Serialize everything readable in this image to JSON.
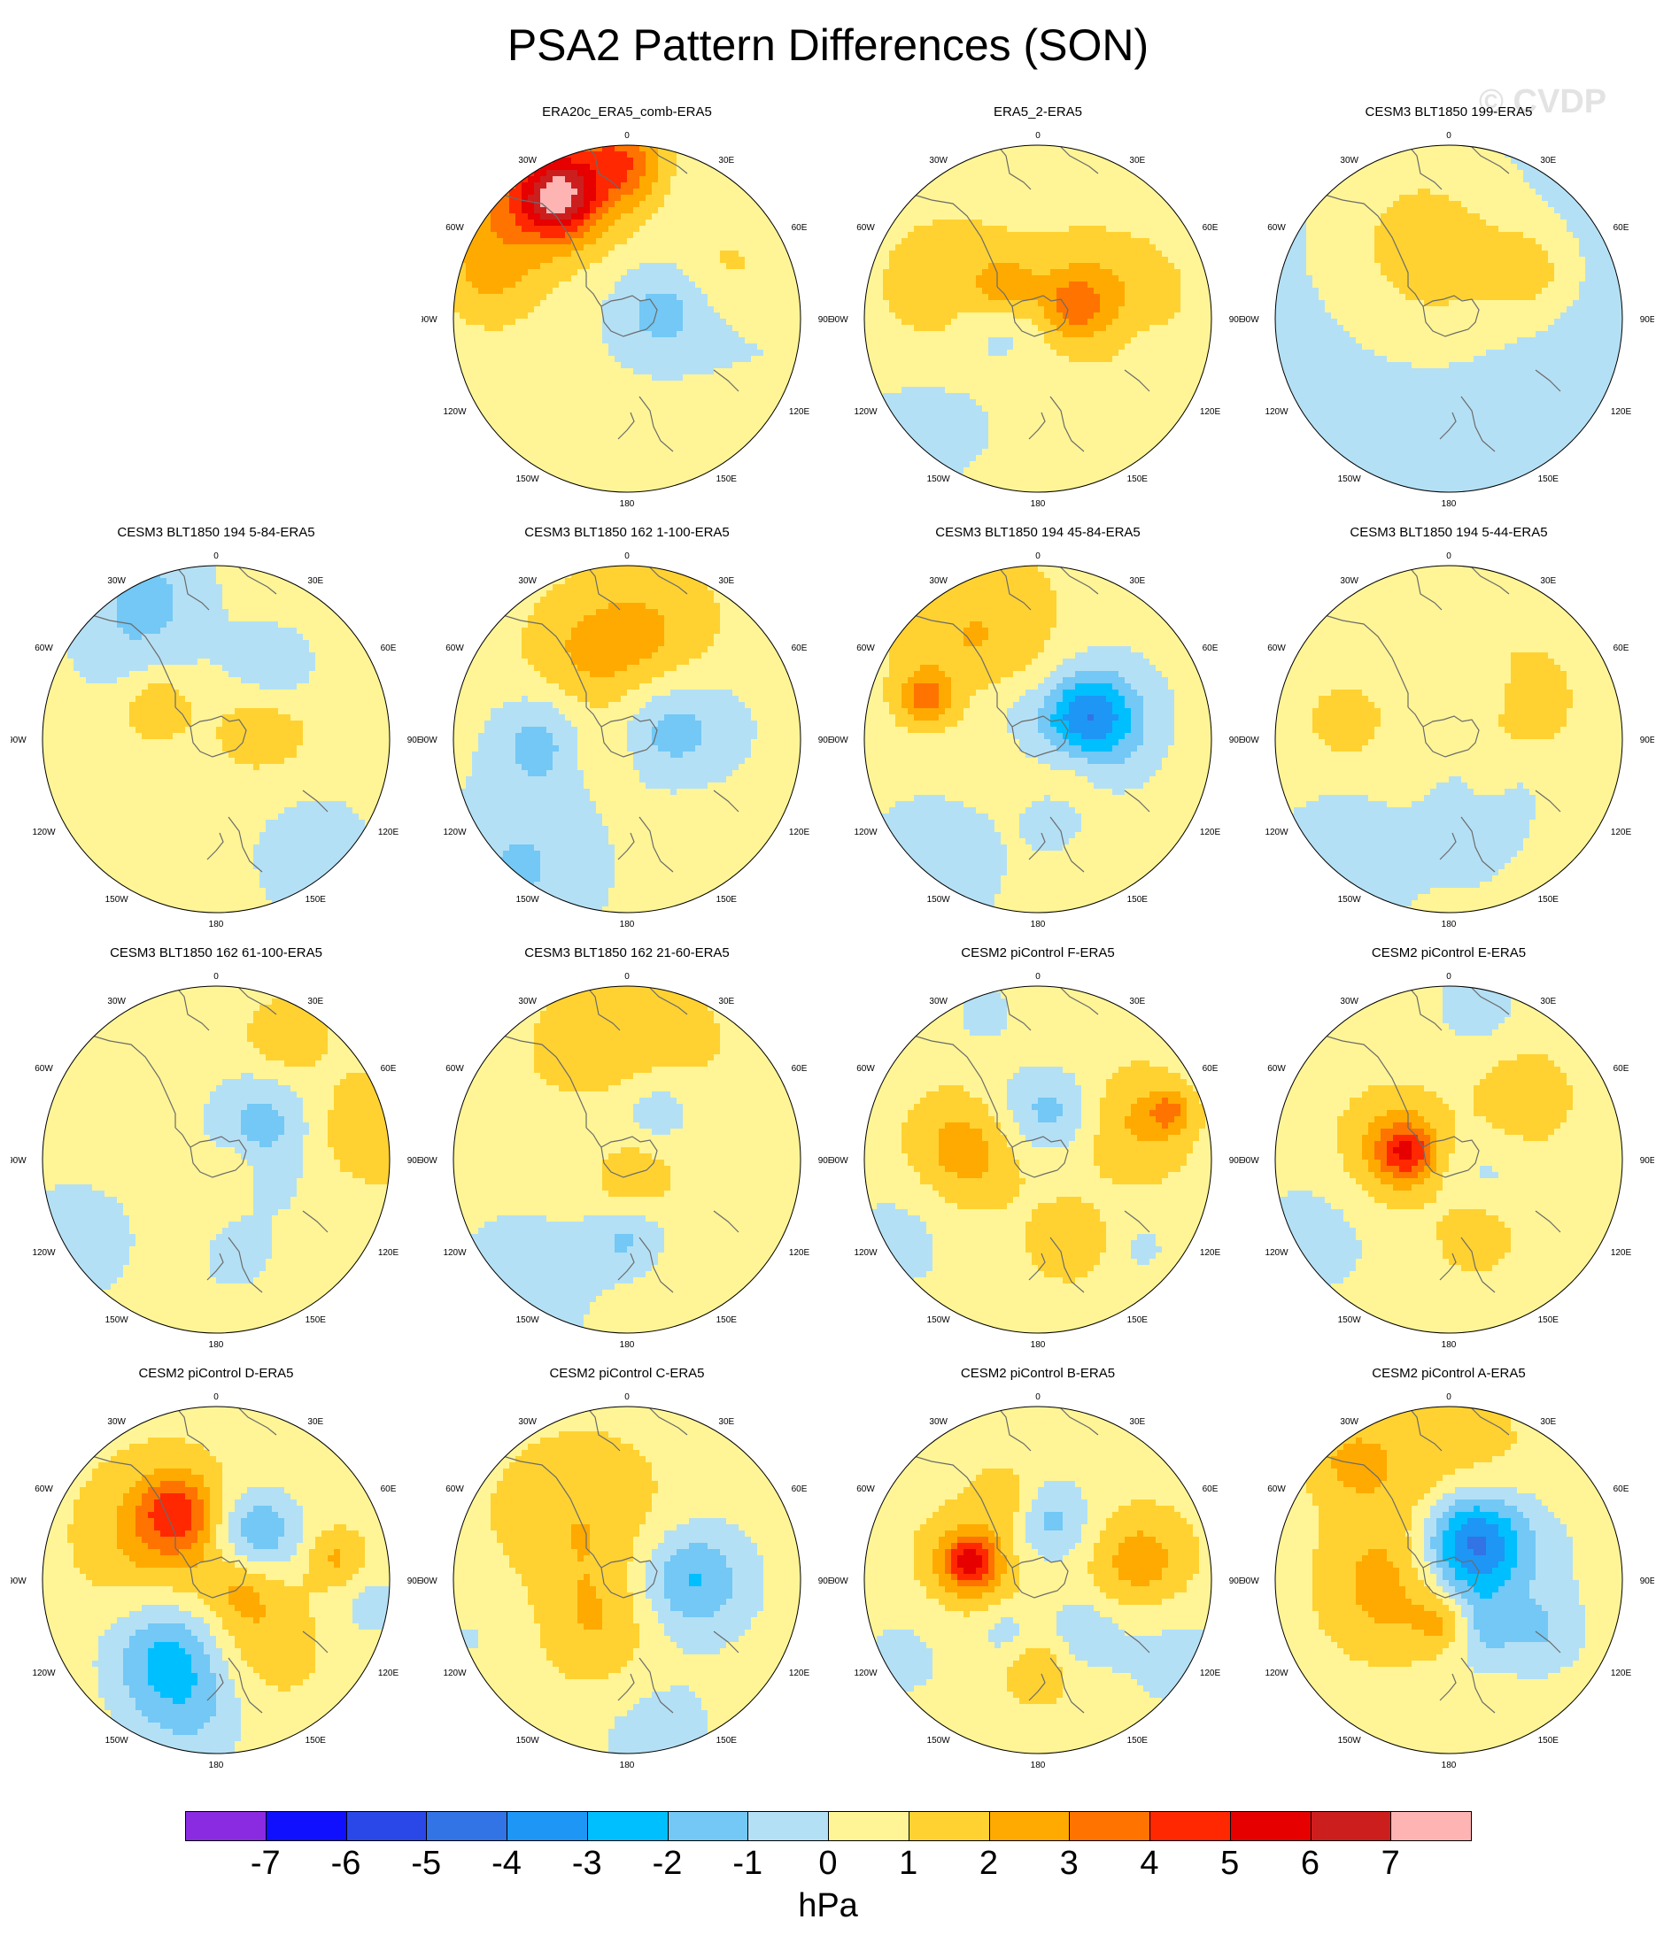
{
  "title": "PSA2 Pattern Differences (SON)",
  "watermark": "© CVDP",
  "units": "hPa",
  "colorbar": {
    "ticks": [
      "-7",
      "-6",
      "-5",
      "-4",
      "-3",
      "-2",
      "-1",
      "0",
      "1",
      "2",
      "3",
      "4",
      "5",
      "6",
      "7"
    ],
    "colors": [
      "#8a2be2",
      "#1010ff",
      "#2a48e8",
      "#3273e6",
      "#1e96f5",
      "#00bfff",
      "#73c8f5",
      "#b4e0f5",
      "#fff596",
      "#ffd232",
      "#ffaa00",
      "#ff7300",
      "#ff2800",
      "#e60000",
      "#cd1e1e",
      "#ffb4b4"
    ]
  },
  "map_labels": {
    "lon_0": "0",
    "e30": "30E",
    "e60": "60E",
    "e90": "90E",
    "e120": "120E",
    "e150": "150E",
    "lon_180": "180",
    "w150": "150W",
    "w120": "120W",
    "w90": "90W",
    "w60": "60W",
    "w30": "30W"
  },
  "panels": [
    {
      "title": "ERA20c_ERA5_comb-ERA5",
      "bg": 0.1,
      "blobs": [
        [
          180,
          5,
          0.9,
          0.15,
          2.2
        ],
        [
          200,
          5,
          0.9,
          0.3,
          3.2
        ],
        [
          210,
          30,
          0.8,
          0.15,
          4.2
        ],
        [
          235,
          35,
          0.95,
          0.3,
          2.1
        ],
        [
          260,
          20,
          0.8,
          0.2,
          1.0
        ],
        [
          100,
          40,
          0.2,
          0.2,
          -2.3
        ],
        [
          100,
          40,
          0.6,
          0.25,
          -0.6
        ],
        [
          90,
          20,
          0.2,
          0.25,
          0.8
        ],
        [
          115,
          30,
          0.65,
          0.22,
          1.4
        ]
      ]
    },
    {
      "title": "ERA5_2-ERA5",
      "bg": 0.2,
      "blobs": [
        [
          250,
          40,
          0.55,
          0.32,
          1.6
        ],
        [
          230,
          30,
          0.25,
          0.12,
          2.1
        ],
        [
          100,
          50,
          0.5,
          0.3,
          1.6
        ],
        [
          110,
          30,
          0.22,
          0.12,
          2.1
        ],
        [
          270,
          40,
          0.22,
          0.18,
          -1.5
        ],
        [
          80,
          40,
          0.6,
          0.15,
          -0.6
        ],
        [
          310,
          40,
          0.8,
          0.3,
          -0.5
        ],
        [
          150,
          80,
          0.25,
          0.28,
          0.7
        ]
      ]
    },
    {
      "title": "CESM3 BLT1850 199-ERA5",
      "bg": -0.6,
      "blobs": [
        [
          200,
          5,
          0.6,
          0.45,
          1.1
        ],
        [
          120,
          30,
          0.55,
          0.18,
          1.4
        ],
        [
          200,
          40,
          0.3,
          0.5,
          0.6
        ],
        [
          180,
          20,
          0.3,
          0.3,
          0.6
        ]
      ]
    },
    {
      "title": "CESM3 BLT1850 194 5-84-ERA5",
      "bg": 0.6,
      "blobs": [
        [
          220,
          30,
          0.8,
          0.3,
          -1.2
        ],
        [
          140,
          40,
          0.5,
          0.2,
          -1.6
        ],
        [
          110,
          40,
          0.3,
          0.2,
          1.4
        ],
        [
          240,
          30,
          0.4,
          0.14,
          1.5
        ],
        [
          40,
          40,
          0.9,
          0.3,
          -1.2
        ],
        [
          200,
          60,
          0.95,
          0.25,
          -1.1
        ]
      ]
    },
    {
      "title": "CESM3 BLT1850 162 1-100-ERA5",
      "bg": 0.5,
      "blobs": [
        [
          170,
          10,
          0.6,
          0.3,
          1.6
        ],
        [
          210,
          5,
          0.55,
          0.25,
          1.1
        ],
        [
          320,
          40,
          0.95,
          0.35,
          -1.6
        ],
        [
          270,
          40,
          0.5,
          0.2,
          -1.8
        ],
        [
          110,
          50,
          0.2,
          0.2,
          -1.5
        ],
        [
          100,
          30,
          0.45,
          0.25,
          -1.0
        ],
        [
          290,
          10,
          0.15,
          0.15,
          0.8
        ]
      ]
    },
    {
      "title": "CESM3 BLT1850 194 45-84-ERA5",
      "bg": 0.5,
      "blobs": [
        [
          210,
          40,
          0.65,
          0.35,
          1.6
        ],
        [
          250,
          10,
          0.7,
          0.1,
          2.6
        ],
        [
          110,
          40,
          0.3,
          0.18,
          -3.5
        ],
        [
          110,
          50,
          0.35,
          0.3,
          -1.5
        ],
        [
          230,
          20,
          0.3,
          0.15,
          -0.8
        ],
        [
          10,
          40,
          0.5,
          0.12,
          -0.8
        ],
        [
          320,
          40,
          0.95,
          0.3,
          -1.3
        ],
        [
          60,
          30,
          0.25,
          0.15,
          1.2
        ]
      ]
    },
    {
      "title": "CESM3 BLT1850 194 5-44-ERA5",
      "bg": 0.5,
      "blobs": [
        [
          40,
          30,
          0.4,
          0.2,
          -1.0
        ],
        [
          320,
          30,
          0.95,
          0.3,
          -1.3
        ],
        [
          10,
          40,
          0.6,
          0.2,
          -1.0
        ],
        [
          120,
          60,
          0.45,
          0.22,
          1.4
        ],
        [
          140,
          40,
          0.35,
          0.14,
          -1.1
        ],
        [
          260,
          15,
          0.6,
          0.13,
          1.5
        ],
        [
          40,
          20,
          0.35,
          0.1,
          1.0
        ]
      ]
    },
    {
      "title": "CESM3 BLT1850 162 61-100-ERA5",
      "bg": 0.6,
      "blobs": [
        [
          100,
          40,
          0.85,
          0.25,
          1.5
        ],
        [
          150,
          80,
          0.8,
          0.16,
          1.3
        ],
        [
          130,
          30,
          0.35,
          0.2,
          -1.6
        ],
        [
          80,
          20,
          0.45,
          0.4,
          -0.7
        ],
        [
          300,
          40,
          0.95,
          0.3,
          -1.1
        ],
        [
          10,
          40,
          0.6,
          0.15,
          -0.7
        ],
        [
          60,
          30,
          0.1,
          0.1,
          1.1
        ]
      ]
    },
    {
      "title": "CESM3 BLT1850 162 21-60-ERA5",
      "bg": 0.6,
      "blobs": [
        [
          180,
          5,
          0.6,
          0.35,
          1.4
        ],
        [
          320,
          40,
          0.95,
          0.35,
          -1.2
        ],
        [
          0,
          40,
          0.45,
          0.15,
          -1.6
        ],
        [
          150,
          30,
          0.35,
          0.18,
          -1.7
        ],
        [
          10,
          50,
          0.1,
          0.15,
          1.5
        ],
        [
          230,
          20,
          0.25,
          0.2,
          -0.8
        ]
      ]
    },
    {
      "title": "CESM2 piControl F-ERA5",
      "bg": 0.6,
      "blobs": [
        [
          110,
          30,
          0.6,
          0.22,
          1.5
        ],
        [
          110,
          10,
          0.8,
          0.08,
          2.2
        ],
        [
          260,
          30,
          0.4,
          0.22,
          2.2
        ],
        [
          160,
          40,
          0.3,
          0.17,
          -1.6
        ],
        [
          210,
          20,
          0.3,
          0.2,
          -0.9
        ],
        [
          20,
          30,
          0.5,
          0.15,
          1.3
        ],
        [
          50,
          50,
          0.8,
          0.1,
          -0.9
        ],
        [
          300,
          40,
          0.95,
          0.25,
          -1.0
        ],
        [
          200,
          60,
          0.9,
          0.15,
          -0.9
        ]
      ]
    },
    {
      "title": "CESM2 piControl E-ERA5",
      "bg": 0.6,
      "blobs": [
        [
          260,
          30,
          0.3,
          0.22,
          2.0
        ],
        [
          260,
          20,
          0.25,
          0.11,
          2.9
        ],
        [
          130,
          40,
          0.55,
          0.18,
          1.4
        ],
        [
          20,
          20,
          0.45,
          0.15,
          1.3
        ],
        [
          300,
          40,
          0.9,
          0.3,
          -1.0
        ],
        [
          170,
          60,
          0.9,
          0.2,
          -1.0
        ],
        [
          60,
          30,
          0.2,
          0.2,
          -0.9
        ]
      ]
    },
    {
      "title": "CESM2 piControl D-ERA5",
      "bg": 0.6,
      "blobs": [
        [
          330,
          40,
          0.5,
          0.25,
          -3.0
        ],
        [
          350,
          20,
          0.8,
          0.25,
          -1.2
        ],
        [
          140,
          30,
          0.35,
          0.18,
          -2.8
        ],
        [
          230,
          40,
          0.4,
          0.3,
          2.0
        ],
        [
          210,
          20,
          0.45,
          0.15,
          2.7
        ],
        [
          30,
          30,
          0.4,
          0.25,
          1.5
        ],
        [
          80,
          40,
          0.15,
          0.15,
          1.2
        ],
        [
          100,
          30,
          0.7,
          0.12,
          1.6
        ],
        [
          80,
          40,
          0.9,
          0.15,
          -1.0
        ]
      ]
    },
    {
      "title": "CESM2 piControl C-ERA5",
      "bg": 0.6,
      "blobs": [
        [
          90,
          40,
          0.35,
          0.2,
          -2.0
        ],
        [
          90,
          30,
          0.45,
          0.3,
          -0.9
        ],
        [
          220,
          30,
          0.4,
          0.35,
          1.4
        ],
        [
          330,
          40,
          0.35,
          0.25,
          1.3
        ],
        [
          10,
          40,
          0.9,
          0.3,
          -1.0
        ],
        [
          290,
          30,
          0.9,
          0.3,
          -0.7
        ]
      ]
    },
    {
      "title": "CESM2 piControl B-ERA5",
      "bg": 0.6,
      "blobs": [
        [
          255,
          30,
          0.4,
          0.2,
          2.0
        ],
        [
          255,
          20,
          0.4,
          0.1,
          3.2
        ],
        [
          100,
          30,
          0.6,
          0.2,
          2.0
        ],
        [
          170,
          30,
          0.35,
          0.17,
          -2.0
        ],
        [
          40,
          30,
          0.4,
          0.15,
          -1.4
        ],
        [
          330,
          30,
          0.35,
          0.12,
          -1.2
        ],
        [
          0,
          40,
          0.5,
          0.15,
          1.3
        ],
        [
          200,
          40,
          0.5,
          0.13,
          1.4
        ],
        [
          60,
          40,
          0.9,
          0.25,
          -1.0
        ],
        [
          300,
          40,
          0.9,
          0.25,
          -0.8
        ]
      ]
    },
    {
      "title": "CESM2 piControl A-ERA5",
      "bg": 0.3,
      "blobs": [
        [
          150,
          30,
          0.25,
          0.2,
          -4.2
        ],
        [
          130,
          40,
          0.3,
          0.3,
          -1.6
        ],
        [
          180,
          20,
          0.6,
          0.4,
          1.6
        ],
        [
          280,
          20,
          0.35,
          0.3,
          2.0
        ],
        [
          0,
          40,
          0.25,
          0.12,
          2.2
        ],
        [
          30,
          40,
          0.3,
          0.15,
          -2.0
        ],
        [
          60,
          40,
          0.6,
          0.15,
          -1.2
        ],
        [
          220,
          40,
          0.9,
          0.18,
          1.4
        ]
      ]
    }
  ]
}
